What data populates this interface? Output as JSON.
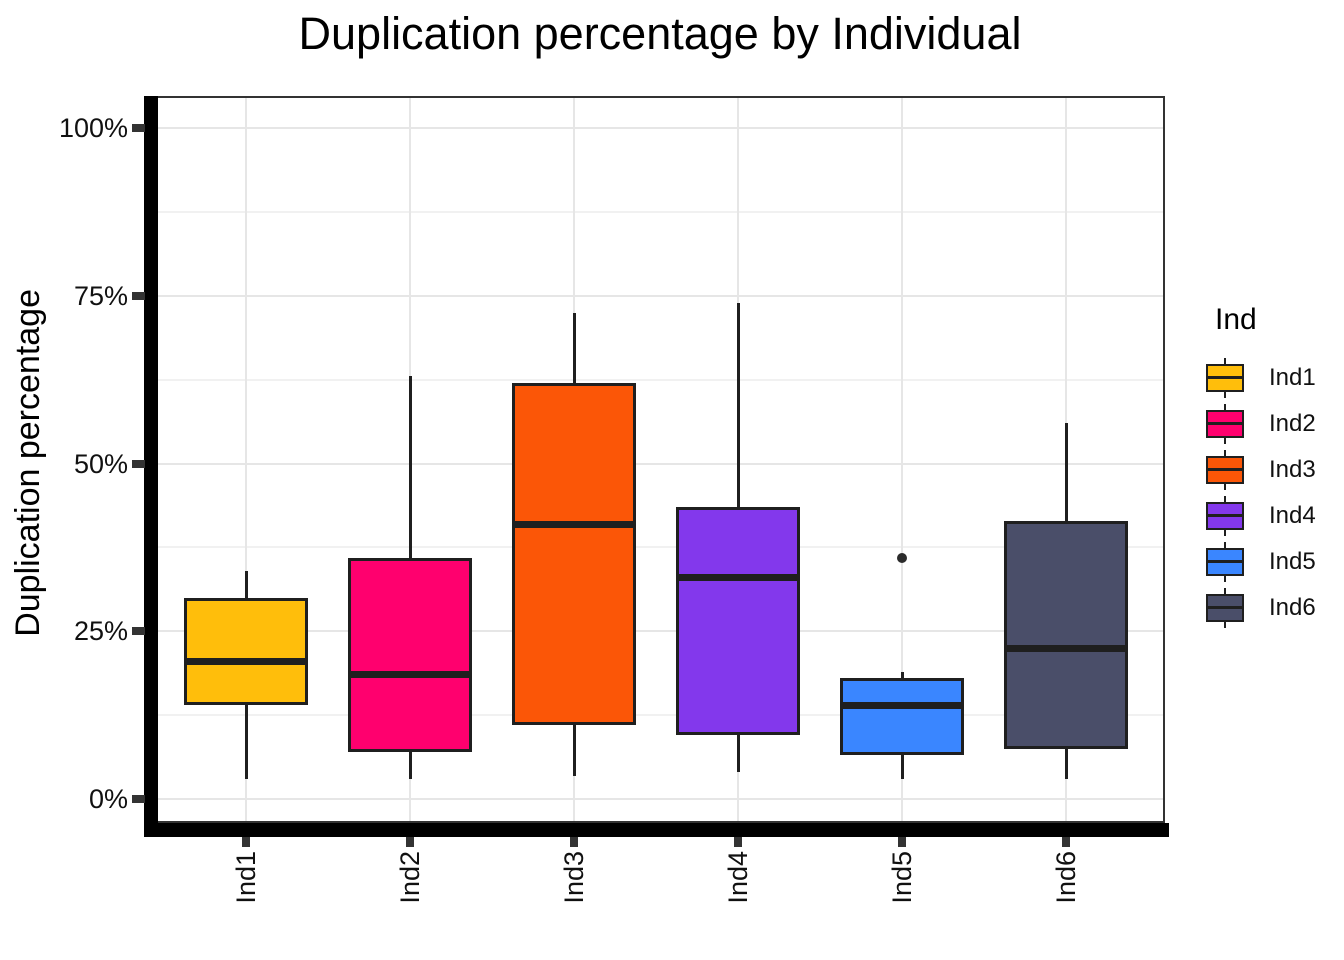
{
  "title": "Duplication percentage by Individual",
  "axes": {
    "y_label": "Duplication percentage",
    "x_tick_labels": [
      "Ind1",
      "Ind2",
      "Ind3",
      "Ind4",
      "Ind5",
      "Ind6"
    ],
    "y_tick_labels": [
      "0%",
      "25%",
      "50%",
      "75%",
      "100%"
    ]
  },
  "legend": {
    "title": "Ind",
    "entries": [
      {
        "label": "Ind1",
        "color": "#FFBE0B"
      },
      {
        "label": "Ind2",
        "color": "#FF006E"
      },
      {
        "label": "Ind3",
        "color": "#FB5607"
      },
      {
        "label": "Ind4",
        "color": "#8338EC"
      },
      {
        "label": "Ind5",
        "color": "#3A86FF"
      },
      {
        "label": "Ind6",
        "color": "#4A4E69"
      }
    ]
  },
  "chart_data": {
    "type": "boxplot",
    "title": "Duplication percentage by Individual",
    "xlabel": "",
    "ylabel": "Duplication percentage",
    "ylim": [
      0,
      100
    ],
    "y_ticks": [
      {
        "value": 0,
        "label": "0%"
      },
      {
        "value": 25,
        "label": "25%"
      },
      {
        "value": 50,
        "label": "50%"
      },
      {
        "value": 75,
        "label": "75%"
      },
      {
        "value": 100,
        "label": "100%"
      }
    ],
    "y_minor_gridlines": [
      12.5,
      37.5,
      62.5,
      87.5
    ],
    "categories": [
      "Ind1",
      "Ind2",
      "Ind3",
      "Ind4",
      "Ind5",
      "Ind6"
    ],
    "series": [
      {
        "name": "Ind1",
        "color": "#FFBE0B",
        "min": 3,
        "q1": 14,
        "median": 20.5,
        "q3": 30,
        "max": 34,
        "outliers": []
      },
      {
        "name": "Ind2",
        "color": "#FF006E",
        "min": 3,
        "q1": 7,
        "median": 18.5,
        "q3": 36,
        "max": 63,
        "outliers": []
      },
      {
        "name": "Ind3",
        "color": "#FB5607",
        "min": 3.5,
        "q1": 11,
        "median": 41,
        "q3": 62,
        "max": 72.5,
        "outliers": []
      },
      {
        "name": "Ind4",
        "color": "#8338EC",
        "min": 4,
        "q1": 9.5,
        "median": 33,
        "q3": 43.5,
        "max": 74,
        "outliers": []
      },
      {
        "name": "Ind5",
        "color": "#3A86FF",
        "min": 3,
        "q1": 6.5,
        "median": 14,
        "q3": 18,
        "max": 19,
        "outliers": [
          36
        ]
      },
      {
        "name": "Ind6",
        "color": "#4A4E69",
        "min": 3,
        "q1": 7.5,
        "median": 22.5,
        "q3": 41.5,
        "max": 56,
        "outliers": []
      }
    ],
    "legend_title": "Ind",
    "legend_position": "right",
    "grid": true
  },
  "style": {
    "grid_major_color": "#E6E6E6",
    "grid_minor_color": "#F1F1F1",
    "box_border_color": "#1f1f1f",
    "axis_line_color": "#000000",
    "panel_border_color": "#333333",
    "tick_color": "#333333",
    "background_color": "#FFFFFF"
  }
}
